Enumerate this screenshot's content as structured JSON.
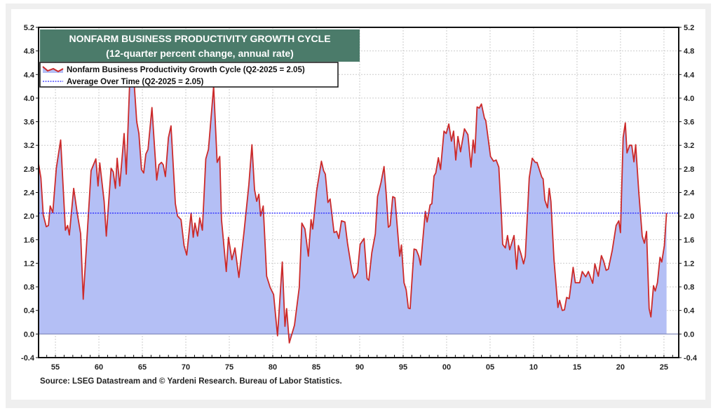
{
  "chart_data": {
    "type": "area",
    "title": "NONFARM BUSINESS PRODUCTIVITY GROWTH CYCLE",
    "subtitle": "(12-quarter percent change, annual rate)",
    "source": "Source: LSEG Datastream and © Yardeni Research. Bureau of Labor Statistics.",
    "xlabel": "",
    "ylabel": "",
    "xlim": [
      1953.06,
      2026.7
    ],
    "ylim": [
      -0.4,
      5.2
    ],
    "yticks": [
      "5.2",
      "4.8",
      "4.4",
      "4.0",
      "3.6",
      "3.2",
      "2.8",
      "2.4",
      "2.0",
      "1.6",
      "1.2",
      "0.8",
      "0.4",
      "0.0",
      "-0.4"
    ],
    "xticks": [
      {
        "x": 1955,
        "label": "55"
      },
      {
        "x": 1960,
        "label": "60"
      },
      {
        "x": 1965,
        "label": "65"
      },
      {
        "x": 1970,
        "label": "70"
      },
      {
        "x": 1975,
        "label": "75"
      },
      {
        "x": 1980,
        "label": "80"
      },
      {
        "x": 1985,
        "label": "85"
      },
      {
        "x": 1990,
        "label": "90"
      },
      {
        "x": 1995,
        "label": "95"
      },
      {
        "x": 2000,
        "label": "00"
      },
      {
        "x": 2005,
        "label": "05"
      },
      {
        "x": 2010,
        "label": "10"
      },
      {
        "x": 2015,
        "label": "15"
      },
      {
        "x": 2020,
        "label": "20"
      },
      {
        "x": 2025,
        "label": "25"
      }
    ],
    "grid": true,
    "legend_position": "top-left",
    "colors": {
      "line": "#cc2a2a",
      "fill": "#b4bff5",
      "average": "#2a2aff",
      "title_bg": "#4b7b6a"
    },
    "series": [
      {
        "name": "Nonfarm Business Productivity Growth Cycle (Q2-2025 = 2.05)",
        "points": [
          [
            1953.06,
            2.89
          ],
          [
            1953.33,
            2.65
          ],
          [
            1953.6,
            2.02
          ],
          [
            1953.95,
            1.82
          ],
          [
            1954.2,
            1.84
          ],
          [
            1954.4,
            2.17
          ],
          [
            1954.7,
            2.06
          ],
          [
            1955.1,
            2.81
          ],
          [
            1955.6,
            3.29
          ],
          [
            1956.15,
            1.76
          ],
          [
            1956.4,
            1.84
          ],
          [
            1956.6,
            1.68
          ],
          [
            1957.1,
            2.47
          ],
          [
            1957.5,
            2.06
          ],
          [
            1957.9,
            1.7
          ],
          [
            1958.2,
            0.59
          ],
          [
            1959.1,
            2.77
          ],
          [
            1959.65,
            2.97
          ],
          [
            1959.9,
            2.51
          ],
          [
            1960.1,
            2.9
          ],
          [
            1960.6,
            2.25
          ],
          [
            1960.85,
            1.66
          ],
          [
            1961.4,
            2.81
          ],
          [
            1961.65,
            2.75
          ],
          [
            1961.9,
            2.47
          ],
          [
            1962.1,
            2.98
          ],
          [
            1962.4,
            2.51
          ],
          [
            1962.9,
            3.4
          ],
          [
            1963.15,
            2.71
          ],
          [
            1963.6,
            4.5
          ],
          [
            1963.9,
            4.6
          ],
          [
            1964.35,
            3.6
          ],
          [
            1964.6,
            3.4
          ],
          [
            1964.9,
            2.79
          ],
          [
            1965.15,
            2.73
          ],
          [
            1965.4,
            3.05
          ],
          [
            1965.65,
            3.13
          ],
          [
            1966.1,
            3.84
          ],
          [
            1966.65,
            2.61
          ],
          [
            1966.9,
            2.87
          ],
          [
            1967.2,
            2.91
          ],
          [
            1967.4,
            2.87
          ],
          [
            1967.65,
            2.67
          ],
          [
            1968.0,
            3.33
          ],
          [
            1968.3,
            3.53
          ],
          [
            1968.8,
            2.21
          ],
          [
            1969.05,
            2.0
          ],
          [
            1969.45,
            1.94
          ],
          [
            1969.8,
            1.5
          ],
          [
            1970.1,
            1.34
          ],
          [
            1970.6,
            2.05
          ],
          [
            1970.85,
            1.64
          ],
          [
            1971.05,
            1.88
          ],
          [
            1971.35,
            1.66
          ],
          [
            1971.6,
            1.97
          ],
          [
            1971.9,
            1.76
          ],
          [
            1972.3,
            2.97
          ],
          [
            1972.6,
            3.13
          ],
          [
            1973.2,
            4.2
          ],
          [
            1973.6,
            2.91
          ],
          [
            1973.9,
            3.01
          ],
          [
            1974.1,
            1.94
          ],
          [
            1974.65,
            1.06
          ],
          [
            1974.9,
            1.64
          ],
          [
            1975.3,
            1.26
          ],
          [
            1975.65,
            1.46
          ],
          [
            1976.1,
            0.96
          ],
          [
            1976.7,
            1.74
          ],
          [
            1977.25,
            2.53
          ],
          [
            1977.6,
            3.21
          ],
          [
            1977.9,
            2.45
          ],
          [
            1978.15,
            2.25
          ],
          [
            1978.4,
            2.37
          ],
          [
            1978.6,
            2.0
          ],
          [
            1978.9,
            2.17
          ],
          [
            1979.3,
            0.98
          ],
          [
            1979.7,
            0.79
          ],
          [
            1980.1,
            0.67
          ],
          [
            1980.55,
            -0.03
          ],
          [
            1981.1,
            1.22
          ],
          [
            1981.4,
            0.13
          ],
          [
            1981.6,
            0.43
          ],
          [
            1981.9,
            -0.15
          ],
          [
            1982.5,
            0.15
          ],
          [
            1983.05,
            0.79
          ],
          [
            1983.35,
            1.88
          ],
          [
            1983.7,
            1.78
          ],
          [
            1984.1,
            1.32
          ],
          [
            1984.4,
            1.94
          ],
          [
            1984.6,
            1.78
          ],
          [
            1985.05,
            2.43
          ],
          [
            1985.6,
            2.93
          ],
          [
            1985.85,
            2.77
          ],
          [
            1986.05,
            2.71
          ],
          [
            1986.35,
            2.23
          ],
          [
            1986.6,
            2.29
          ],
          [
            1987.05,
            1.72
          ],
          [
            1987.35,
            1.74
          ],
          [
            1987.6,
            1.62
          ],
          [
            1987.9,
            1.92
          ],
          [
            1988.3,
            1.9
          ],
          [
            1988.6,
            1.54
          ],
          [
            1989.1,
            1.08
          ],
          [
            1989.35,
            0.95
          ],
          [
            1989.75,
            1.04
          ],
          [
            1990.05,
            1.52
          ],
          [
            1990.5,
            1.62
          ],
          [
            1990.85,
            0.94
          ],
          [
            1991.05,
            0.91
          ],
          [
            1991.4,
            1.38
          ],
          [
            1991.8,
            1.7
          ],
          [
            1992.05,
            2.33
          ],
          [
            1992.45,
            2.57
          ],
          [
            1992.8,
            2.84
          ],
          [
            1993.05,
            2.37
          ],
          [
            1993.3,
            1.81
          ],
          [
            1993.5,
            1.84
          ],
          [
            1993.8,
            2.33
          ],
          [
            1994.05,
            2.31
          ],
          [
            1994.6,
            1.32
          ],
          [
            1994.8,
            1.51
          ],
          [
            1995.1,
            0.87
          ],
          [
            1995.35,
            0.75
          ],
          [
            1995.6,
            0.44
          ],
          [
            1995.8,
            0.43
          ],
          [
            1996.25,
            1.44
          ],
          [
            1996.5,
            1.43
          ],
          [
            1996.8,
            1.32
          ],
          [
            1997.0,
            1.17
          ],
          [
            1997.55,
            2.08
          ],
          [
            1997.75,
            1.9
          ],
          [
            1998.1,
            2.19
          ],
          [
            1998.3,
            2.21
          ],
          [
            1998.55,
            2.68
          ],
          [
            1998.75,
            2.73
          ],
          [
            1999.05,
            2.99
          ],
          [
            1999.3,
            2.79
          ],
          [
            1999.7,
            3.44
          ],
          [
            1999.95,
            3.4
          ],
          [
            2000.25,
            3.56
          ],
          [
            2000.55,
            3.27
          ],
          [
            2000.8,
            3.44
          ],
          [
            2001.05,
            2.95
          ],
          [
            2001.3,
            3.35
          ],
          [
            2001.6,
            3.09
          ],
          [
            2002.05,
            3.48
          ],
          [
            2002.45,
            3.38
          ],
          [
            2002.8,
            2.83
          ],
          [
            2003.05,
            3.29
          ],
          [
            2003.25,
            3.07
          ],
          [
            2003.5,
            3.85
          ],
          [
            2003.75,
            3.83
          ],
          [
            2004.0,
            3.9
          ],
          [
            2004.35,
            3.66
          ],
          [
            2004.5,
            3.62
          ],
          [
            2005.05,
            3.01
          ],
          [
            2005.4,
            2.93
          ],
          [
            2005.7,
            2.95
          ],
          [
            2006.0,
            2.83
          ],
          [
            2006.3,
            2.02
          ],
          [
            2006.45,
            1.52
          ],
          [
            2006.75,
            1.46
          ],
          [
            2007.0,
            1.67
          ],
          [
            2007.25,
            1.43
          ],
          [
            2007.75,
            1.67
          ],
          [
            2008.05,
            1.1
          ],
          [
            2008.25,
            1.5
          ],
          [
            2008.55,
            1.36
          ],
          [
            2008.85,
            1.19
          ],
          [
            2009.05,
            1.32
          ],
          [
            2009.5,
            2.65
          ],
          [
            2009.85,
            2.98
          ],
          [
            2010.2,
            2.91
          ],
          [
            2010.4,
            2.91
          ],
          [
            2010.95,
            2.66
          ],
          [
            2011.1,
            2.63
          ],
          [
            2011.3,
            2.27
          ],
          [
            2011.6,
            2.14
          ],
          [
            2011.8,
            2.47
          ],
          [
            2012.0,
            2.25
          ],
          [
            2012.35,
            1.26
          ],
          [
            2012.8,
            0.45
          ],
          [
            2013.0,
            0.57
          ],
          [
            2013.3,
            0.4
          ],
          [
            2013.55,
            0.41
          ],
          [
            2013.8,
            0.62
          ],
          [
            2014.1,
            0.6
          ],
          [
            2014.55,
            1.13
          ],
          [
            2014.8,
            0.87
          ],
          [
            2015.3,
            0.87
          ],
          [
            2015.6,
            1.06
          ],
          [
            2016.0,
            0.97
          ],
          [
            2016.3,
            1.06
          ],
          [
            2016.8,
            0.86
          ],
          [
            2017.05,
            1.19
          ],
          [
            2017.45,
            0.98
          ],
          [
            2017.8,
            1.33
          ],
          [
            2018.05,
            1.24
          ],
          [
            2018.35,
            1.08
          ],
          [
            2018.6,
            1.1
          ],
          [
            2019.05,
            1.42
          ],
          [
            2019.5,
            1.84
          ],
          [
            2019.8,
            1.92
          ],
          [
            2020.0,
            1.72
          ],
          [
            2020.3,
            3.33
          ],
          [
            2020.55,
            3.58
          ],
          [
            2020.75,
            3.07
          ],
          [
            2021.05,
            3.2
          ],
          [
            2021.3,
            3.2
          ],
          [
            2021.55,
            2.92
          ],
          [
            2021.75,
            3.21
          ],
          [
            2022.1,
            2.41
          ],
          [
            2022.5,
            1.66
          ],
          [
            2022.75,
            1.54
          ],
          [
            2023.0,
            1.74
          ],
          [
            2023.3,
            0.43
          ],
          [
            2023.5,
            0.29
          ],
          [
            2023.8,
            0.82
          ],
          [
            2024.0,
            0.73
          ],
          [
            2024.25,
            0.87
          ],
          [
            2024.55,
            1.3
          ],
          [
            2024.75,
            1.22
          ],
          [
            2025.05,
            1.5
          ],
          [
            2025.3,
            2.05
          ]
        ]
      },
      {
        "name": "Average Over Time (Q2-2025 = 2.05)",
        "value": 2.05
      }
    ]
  }
}
